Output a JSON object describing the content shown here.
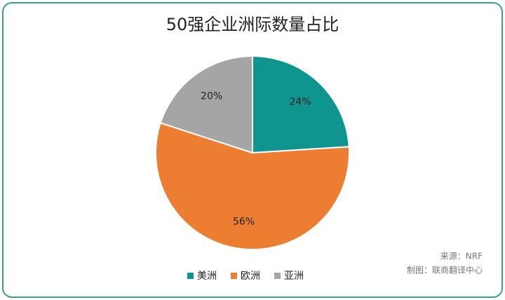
{
  "chart_data": {
    "type": "pie",
    "title": "50强企业洲际数量占比",
    "categories": [
      "美洲",
      "欧洲",
      "亚洲"
    ],
    "values": [
      24,
      56,
      20
    ],
    "value_labels": [
      "24%",
      "56%",
      "20%"
    ],
    "colors": [
      "#0f9590",
      "#ed7d31",
      "#a5a5a5"
    ],
    "source": "来源：NRF",
    "credit": "制图：联商翻译中心"
  }
}
